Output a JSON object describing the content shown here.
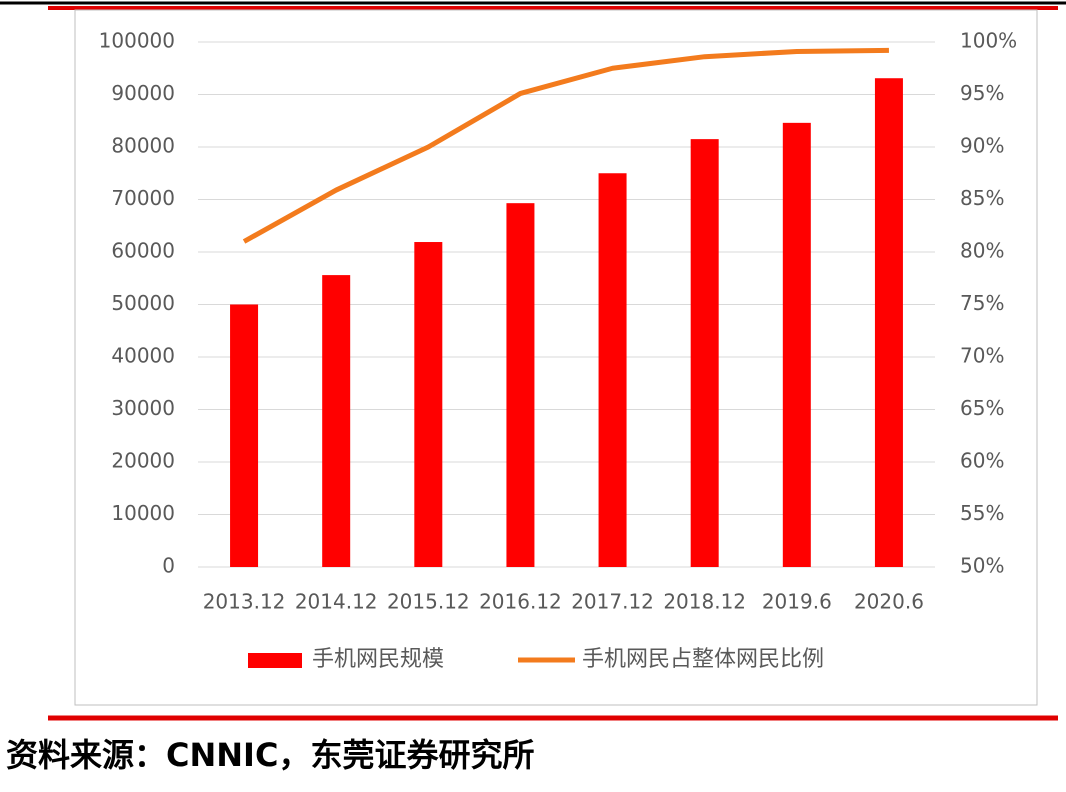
{
  "chart_data": {
    "type": "bar-line",
    "categories": [
      "2013.12",
      "2014.12",
      "2015.12",
      "2016.12",
      "2017.12",
      "2018.12",
      "2019.6",
      "2020.6"
    ],
    "series": [
      {
        "name": "手机网民规模",
        "color": "#ff0000",
        "type": "bar",
        "axis": "y",
        "values": [
          50000,
          55600,
          61900,
          69300,
          75000,
          81500,
          84600,
          93100
        ]
      },
      {
        "name": "手机网民占整体网民比例",
        "color": "#f37b1d",
        "type": "line",
        "axis": "y2",
        "values": [
          81.0,
          85.9,
          90.0,
          95.1,
          97.5,
          98.6,
          99.1,
          99.2
        ]
      }
    ],
    "ylim": [
      0,
      100000
    ],
    "yticks": [
      0,
      10000,
      20000,
      30000,
      40000,
      50000,
      60000,
      70000,
      80000,
      90000,
      100000
    ],
    "y2lim": [
      50,
      100
    ],
    "y2ticks": [
      {
        "value": 50,
        "label": "50%"
      },
      {
        "value": 55,
        "label": "55%"
      },
      {
        "value": 60,
        "label": "60%"
      },
      {
        "value": 65,
        "label": "65%"
      },
      {
        "value": 70,
        "label": "70%"
      },
      {
        "value": 75,
        "label": "75%"
      },
      {
        "value": 80,
        "label": "80%"
      },
      {
        "value": 85,
        "label": "85%"
      },
      {
        "value": 90,
        "label": "90%"
      },
      {
        "value": 95,
        "label": "95%"
      },
      {
        "value": 100,
        "label": "100%"
      }
    ],
    "grid": true,
    "legend": "bottom"
  },
  "source": "资料来源：CNNIC，东莞证券研究所"
}
